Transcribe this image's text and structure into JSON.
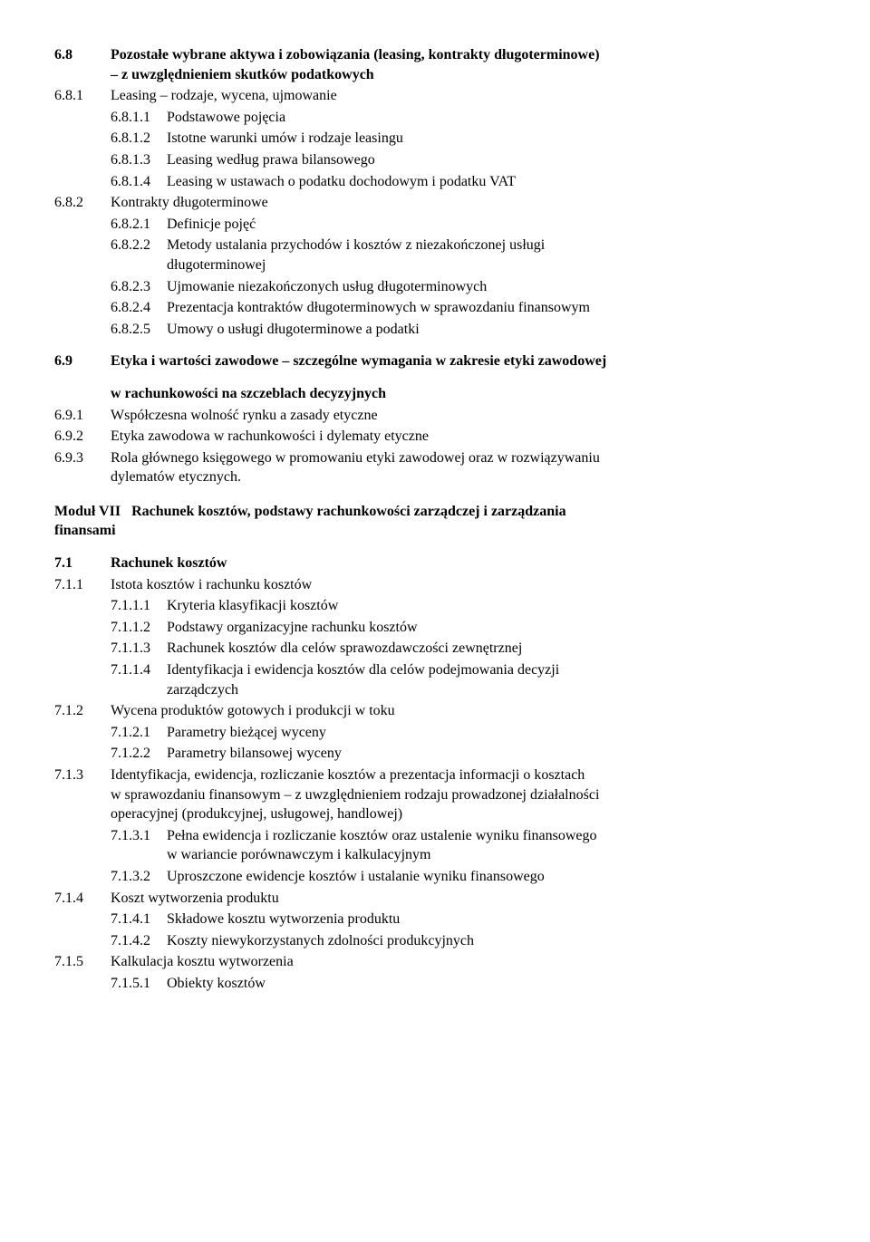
{
  "s68": {
    "num": "6.8",
    "title_l1": "Pozostałe wybrane aktywa i zobowiązania  (leasing, kontrakty długoterminowe)",
    "title_l2": "– z uwzględnieniem skutków podatkowych"
  },
  "s681": {
    "num": "6.8.1",
    "txt": "Leasing – rodzaje, wycena, ujmowanie"
  },
  "s6811": {
    "num": "6.8.1.1",
    "txt": "Podstawowe pojęcia"
  },
  "s6812": {
    "num": "6.8.1.2",
    "txt": "Istotne warunki umów i rodzaje leasingu"
  },
  "s6813": {
    "num": "6.8.1.3",
    "txt": "Leasing według prawa bilansowego"
  },
  "s6814": {
    "num": "6.8.1.4",
    "txt": "Leasing w ustawach o podatku dochodowym i podatku VAT"
  },
  "s682": {
    "num": "6.8.2",
    "txt": "Kontrakty długoterminowe"
  },
  "s6821": {
    "num": "6.8.2.1",
    "txt": "Definicje pojęć"
  },
  "s6822": {
    "num": "6.8.2.2",
    "txt_l1": "Metody ustalania przychodów i kosztów z niezakończonej usługi",
    "txt_l2": "długoterminowej"
  },
  "s6823": {
    "num": "6.8.2.3",
    "txt": "Ujmowanie niezakończonych usług długoterminowych"
  },
  "s6824": {
    "num": "6.8.2.4",
    "txt": "Prezentacja kontraktów długoterminowych w sprawozdaniu finansowym"
  },
  "s6825": {
    "num": "6.8.2.5",
    "txt": "Umowy o usługi długoterminowe a podatki"
  },
  "s69": {
    "num": "6.9",
    "title": "Etyka i wartości zawodowe – szczególne wymagania w zakresie etyki zawodowej",
    "title2": "w rachunkowości na szczeblach decyzyjnych"
  },
  "s691": {
    "num": "6.9.1",
    "txt": "Współczesna wolność rynku a zasady etyczne"
  },
  "s692": {
    "num": "6.9.2",
    "txt": "Etyka zawodowa w rachunkowości i dylematy etyczne"
  },
  "s693": {
    "num": "6.9.3",
    "txt_l1": "Rola głównego księgowego w promowaniu etyki zawodowej oraz w rozwiązywaniu",
    "txt_l2": "dylematów etycznych."
  },
  "module7": {
    "label": "Moduł VII",
    "title_l1": "Rachunek kosztów, podstawy rachunkowości zarządczej i zarządzania",
    "title_l2": "finansami"
  },
  "s71": {
    "num": "7.1",
    "txt": "Rachunek kosztów"
  },
  "s711": {
    "num": "7.1.1",
    "txt": "Istota kosztów i rachunku kosztów"
  },
  "s7111": {
    "num": "7.1.1.1",
    "txt": "Kryteria klasyfikacji kosztów"
  },
  "s7112": {
    "num": "7.1.1.2",
    "txt": "Podstawy organizacyjne rachunku kosztów"
  },
  "s7113": {
    "num": "7.1.1.3",
    "txt": "Rachunek kosztów dla celów sprawozdawczości zewnętrznej"
  },
  "s7114": {
    "num": "7.1.1.4",
    "txt_l1": "Identyfikacja i ewidencja kosztów dla celów podejmowania decyzji",
    "txt_l2": "zarządczych"
  },
  "s712": {
    "num": "7.1.2",
    "txt": "Wycena produktów gotowych i produkcji w toku"
  },
  "s7121": {
    "num": "7.1.2.1",
    "txt": "Parametry bieżącej wyceny"
  },
  "s7122": {
    "num": "7.1.2.2",
    "txt": "Parametry bilansowej wyceny"
  },
  "s713": {
    "num": "7.1.3",
    "l1": "Identyfikacja, ewidencja, rozliczanie kosztów a prezentacja informacji o kosztach",
    "l2": "w sprawozdaniu finansowym – z uwzględnieniem rodzaju prowadzonej działalności",
    "l3": "operacyjnej (produkcyjnej, usługowej, handlowej)"
  },
  "s7131": {
    "num": "7.1.3.1",
    "l1": "Pełna ewidencja i rozliczanie kosztów oraz ustalenie wyniku finansowego",
    "l2": "w wariancie porównawczym i kalkulacyjnym"
  },
  "s7132": {
    "num": "7.1.3.2",
    "txt": "Uproszczone ewidencje kosztów i ustalanie wyniku finansowego"
  },
  "s714": {
    "num": "7.1.4",
    "txt": "Koszt wytworzenia produktu"
  },
  "s7141": {
    "num": "7.1.4.1",
    "txt": "Składowe kosztu wytworzenia produktu"
  },
  "s7142": {
    "num": "7.1.4.2",
    "txt": "Koszty niewykorzystanych zdolności produkcyjnych"
  },
  "s715": {
    "num": "7.1.5",
    "txt": "Kalkulacja kosztu wytworzenia"
  },
  "s7151": {
    "num": "7.1.5.1",
    "txt": "Obiekty kosztów"
  }
}
